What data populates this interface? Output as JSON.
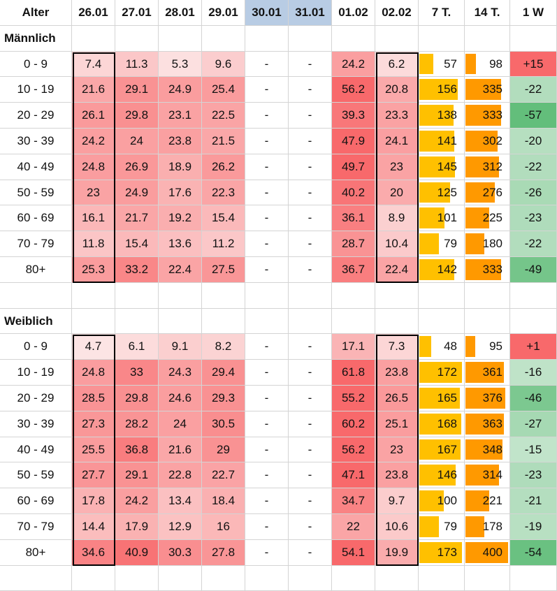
{
  "chart_data": {
    "type": "table",
    "headers": [
      "Alter",
      "26.01",
      "27.01",
      "28.01",
      "29.01",
      "30.01",
      "31.01",
      "01.02",
      "02.02",
      "7 T.",
      "14 T.",
      "1 W"
    ],
    "weekend_columns": [
      "30.01",
      "31.01"
    ],
    "sections": [
      {
        "name": "Männlich",
        "rows": [
          {
            "age": "0 - 9",
            "values": [
              "7.4",
              "11.3",
              "5.3",
              "9.6",
              "-",
              "-",
              "24.2",
              "6.2"
            ],
            "t7": 57,
            "t14": 98,
            "w1": "+15"
          },
          {
            "age": "10 - 19",
            "values": [
              "21.6",
              "29.1",
              "24.9",
              "25.4",
              "-",
              "-",
              "56.2",
              "20.8"
            ],
            "t7": 156,
            "t14": 335,
            "w1": "-22"
          },
          {
            "age": "20 - 29",
            "values": [
              "26.1",
              "29.8",
              "23.1",
              "22.5",
              "-",
              "-",
              "39.3",
              "23.3"
            ],
            "t7": 138,
            "t14": 333,
            "w1": "-57"
          },
          {
            "age": "30 - 39",
            "values": [
              "24.2",
              "24",
              "23.8",
              "21.5",
              "-",
              "-",
              "47.9",
              "24.1"
            ],
            "t7": 141,
            "t14": 302,
            "w1": "-20"
          },
          {
            "age": "40 - 49",
            "values": [
              "24.8",
              "26.9",
              "18.9",
              "26.2",
              "-",
              "-",
              "49.7",
              "23"
            ],
            "t7": 145,
            "t14": 312,
            "w1": "-22"
          },
          {
            "age": "50 - 59",
            "values": [
              "23",
              "24.9",
              "17.6",
              "22.3",
              "-",
              "-",
              "40.2",
              "20"
            ],
            "t7": 125,
            "t14": 276,
            "w1": "-26"
          },
          {
            "age": "60 - 69",
            "values": [
              "16.1",
              "21.7",
              "19.2",
              "15.4",
              "-",
              "-",
              "36.1",
              "8.9"
            ],
            "t7": 101,
            "t14": 225,
            "w1": "-23"
          },
          {
            "age": "70 - 79",
            "values": [
              "11.8",
              "15.4",
              "13.6",
              "11.2",
              "-",
              "-",
              "28.7",
              "10.4"
            ],
            "t7": 79,
            "t14": 180,
            "w1": "-22"
          },
          {
            "age": "80+",
            "values": [
              "25.3",
              "33.2",
              "22.4",
              "27.5",
              "-",
              "-",
              "36.7",
              "22.4"
            ],
            "t7": 142,
            "t14": 333,
            "w1": "-49"
          }
        ]
      },
      {
        "name": "Weiblich",
        "rows": [
          {
            "age": "0 - 9",
            "values": [
              "4.7",
              "6.1",
              "9.1",
              "8.2",
              "-",
              "-",
              "17.1",
              "7.3"
            ],
            "t7": 48,
            "t14": 95,
            "w1": "+1"
          },
          {
            "age": "10 - 19",
            "values": [
              "24.8",
              "33",
              "24.3",
              "29.4",
              "-",
              "-",
              "61.8",
              "23.8"
            ],
            "t7": 172,
            "t14": 361,
            "w1": "-16"
          },
          {
            "age": "20 - 29",
            "values": [
              "28.5",
              "29.8",
              "24.6",
              "29.3",
              "-",
              "-",
              "55.2",
              "26.5"
            ],
            "t7": 165,
            "t14": 376,
            "w1": "-46"
          },
          {
            "age": "30 - 39",
            "values": [
              "27.3",
              "28.2",
              "24",
              "30.5",
              "-",
              "-",
              "60.2",
              "25.1"
            ],
            "t7": 168,
            "t14": 363,
            "w1": "-27"
          },
          {
            "age": "40 - 49",
            "values": [
              "25.5",
              "36.8",
              "21.6",
              "29",
              "-",
              "-",
              "56.2",
              "23"
            ],
            "t7": 167,
            "t14": 348,
            "w1": "-15"
          },
          {
            "age": "50 - 59",
            "values": [
              "27.7",
              "29.1",
              "22.8",
              "22.7",
              "-",
              "-",
              "47.1",
              "23.8"
            ],
            "t7": 146,
            "t14": 314,
            "w1": "-23"
          },
          {
            "age": "60 - 69",
            "values": [
              "17.8",
              "24.2",
              "13.4",
              "18.4",
              "-",
              "-",
              "34.7",
              "9.7"
            ],
            "t7": 100,
            "t14": 221,
            "w1": "-21"
          },
          {
            "age": "70 - 79",
            "values": [
              "14.4",
              "17.9",
              "12.9",
              "16",
              "-",
              "-",
              "22",
              "10.6"
            ],
            "t7": 79,
            "t14": 178,
            "w1": "-19"
          },
          {
            "age": "80+",
            "values": [
              "34.6",
              "40.9",
              "30.3",
              "27.8",
              "-",
              "-",
              "54.1",
              "19.9"
            ],
            "t7": 173,
            "t14": 400,
            "w1": "-54"
          }
        ]
      }
    ],
    "heatmap_colors": {
      "low": "#fce4e4",
      "high": "#f8696b"
    },
    "bar_colors": {
      "t7": "#ffc000",
      "t14": "#ff9900"
    },
    "bar_max": {
      "t7": 175,
      "t14": 400
    },
    "w1_colors": {
      "positive": "#f8696b",
      "negative_light": "#e3f1e6",
      "negative_dark": "#63be7b"
    },
    "weekend_header_color": "#b8cce4"
  }
}
